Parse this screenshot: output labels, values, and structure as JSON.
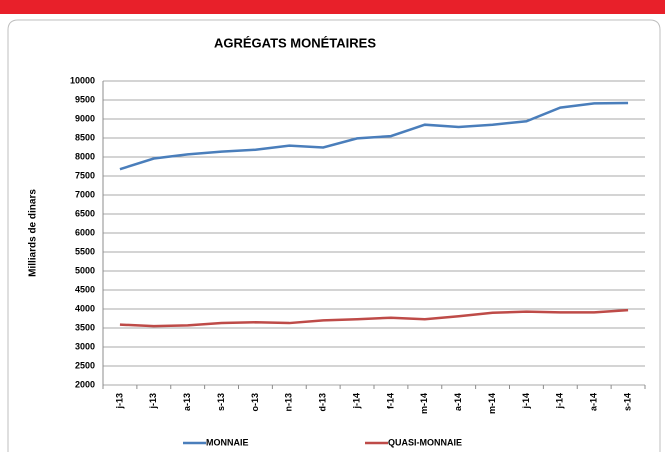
{
  "chart_data": {
    "type": "line",
    "title": "AGRÉGATS MONÉTAIRES",
    "y_label": "Milliards de dinars",
    "categories": [
      "j-13",
      "j-13",
      "a-13",
      "s-13",
      "o-13",
      "n-13",
      "d-13",
      "j-14",
      "f-14",
      "m-14",
      "a-14",
      "m-14",
      "j-14",
      "j-14",
      "a-14",
      "s-14"
    ],
    "series": [
      {
        "name": "MONNAIE",
        "color": "#4a7ebb",
        "values": [
          7680,
          7960,
          8070,
          8140,
          8190,
          8300,
          8250,
          8490,
          8550,
          8850,
          8790,
          8850,
          8940,
          9300,
          9410,
          9420
        ]
      },
      {
        "name": "QUASI-MONNAIE",
        "color": "#be4b48",
        "values": [
          3590,
          3550,
          3570,
          3630,
          3650,
          3630,
          3700,
          3730,
          3770,
          3730,
          3810,
          3900,
          3930,
          3910,
          3910,
          3970
        ]
      }
    ],
    "ylim": [
      2000,
      10000
    ],
    "yticks": [
      2000,
      2500,
      3000,
      3500,
      4000,
      4500,
      5000,
      5500,
      6000,
      6500,
      7000,
      7500,
      8000,
      8500,
      9000,
      9500,
      10000
    ],
    "grid": true,
    "legend": "bottom"
  }
}
